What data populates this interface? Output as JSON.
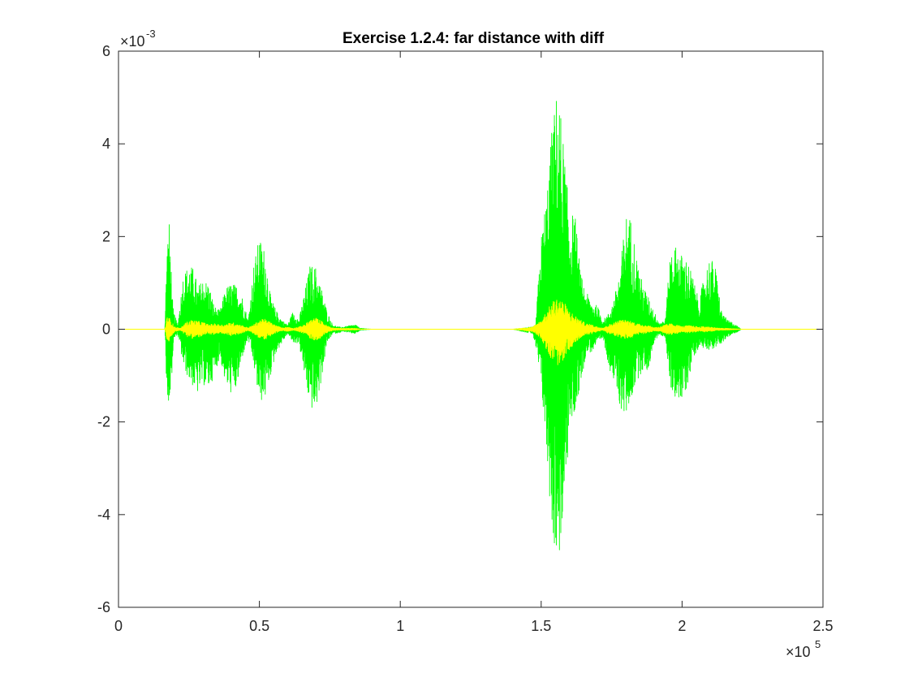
{
  "chart_data": {
    "type": "line",
    "title": "Exercise 1.2.4: far distance with diff",
    "xlabel": "",
    "ylabel": "",
    "x_exponent": {
      "prefix": "×10",
      "power": "5"
    },
    "y_exponent": {
      "prefix": "×10",
      "power": "-3"
    },
    "xlim": [
      0,
      2.5
    ],
    "ylim": [
      -6,
      6
    ],
    "x_ticks": [
      0,
      0.5,
      1,
      1.5,
      2,
      2.5
    ],
    "x_tick_labels": [
      "0",
      "0.5",
      "1",
      "1.5",
      "2",
      "2.5"
    ],
    "y_ticks": [
      -6,
      -4,
      -2,
      0,
      2,
      4,
      6
    ],
    "y_tick_labels": [
      "-6",
      "-4",
      "-2",
      "0",
      "2",
      "4",
      "6"
    ],
    "grid": false,
    "legend": "none",
    "series": [
      {
        "color": "#00ff00",
        "style": "audio waveform (signal)",
        "envelope_x": [
          0,
          0.165,
          0.17,
          0.175,
          0.18,
          0.185,
          0.19,
          0.195,
          0.2,
          0.21,
          0.23,
          0.25,
          0.27,
          0.28,
          0.3,
          0.32,
          0.34,
          0.36,
          0.38,
          0.4,
          0.42,
          0.44,
          0.46,
          0.48,
          0.5,
          0.52,
          0.54,
          0.56,
          0.58,
          0.6,
          0.62,
          0.64,
          0.66,
          0.68,
          0.7,
          0.72,
          0.74,
          0.76,
          0.78,
          0.8,
          0.82,
          0.84,
          0.86,
          0.9,
          1.0,
          1.2,
          1.4,
          1.47,
          1.48,
          1.5,
          1.52,
          1.54,
          1.56,
          1.58,
          1.6,
          1.62,
          1.64,
          1.66,
          1.68,
          1.7,
          1.72,
          1.74,
          1.76,
          1.78,
          1.8,
          1.82,
          1.84,
          1.86,
          1.88,
          1.9,
          1.92,
          1.94,
          1.96,
          1.98,
          2.0,
          2.02,
          2.04,
          2.06,
          2.08,
          2.1,
          2.12,
          2.14,
          2.16,
          2.18,
          2.2,
          2.21,
          2.5
        ],
        "envelope_upper": [
          0,
          0,
          1.5,
          2.1,
          2.3,
          1.8,
          0.8,
          0.4,
          0.3,
          0.1,
          1.2,
          1.4,
          1.3,
          0.9,
          1.1,
          1.0,
          0.5,
          0.4,
          0.9,
          1.0,
          0.95,
          0.7,
          0.2,
          1.4,
          2.0,
          1.7,
          0.7,
          0.4,
          0.2,
          0.1,
          0.4,
          0.2,
          0.8,
          1.4,
          1.35,
          0.9,
          0.4,
          0.1,
          0.05,
          0.05,
          0.08,
          0.1,
          0.02,
          0,
          0,
          0,
          0,
          0.05,
          0.1,
          2.0,
          3.0,
          4.5,
          5.3,
          4.0,
          2.5,
          2.5,
          1.2,
          0.8,
          0.6,
          0.5,
          0.2,
          0.35,
          0.7,
          1.3,
          2.5,
          2.4,
          1.5,
          1.0,
          0.7,
          0.4,
          0.15,
          0.2,
          1.8,
          1.8,
          1.6,
          1.5,
          1.1,
          0.6,
          1.2,
          1.6,
          1.3,
          0.4,
          0.2,
          0.15,
          0.05,
          0,
          0
        ],
        "envelope_lower": [
          0,
          0,
          -1.5,
          -1.4,
          -1.8,
          -1.5,
          -0.9,
          -0.3,
          -0.2,
          -0.1,
          -0.8,
          -1.1,
          -1.3,
          -1.4,
          -1.2,
          -1.3,
          -1.0,
          -0.6,
          -1.2,
          -1.4,
          -1.3,
          -0.6,
          -0.2,
          -0.8,
          -1.6,
          -1.5,
          -1.0,
          -0.5,
          -0.3,
          -0.1,
          -0.3,
          -0.3,
          -1.0,
          -1.7,
          -1.8,
          -1.1,
          -0.3,
          -0.1,
          -0.08,
          -0.05,
          -0.08,
          -0.1,
          -0.02,
          0,
          0,
          0,
          0,
          -0.1,
          -0.4,
          -1.2,
          -2.8,
          -4.5,
          -5.1,
          -4.2,
          -2.2,
          -1.8,
          -1.2,
          -0.5,
          -0.5,
          -0.3,
          -0.2,
          -0.8,
          -1.2,
          -1.7,
          -1.9,
          -1.5,
          -1.1,
          -0.9,
          -0.9,
          -0.3,
          -0.1,
          -0.2,
          -1.3,
          -1.5,
          -1.6,
          -1.2,
          -0.6,
          -0.4,
          -0.4,
          -0.45,
          -0.4,
          -0.3,
          -0.2,
          -0.1,
          -0.05,
          0,
          0
        ]
      },
      {
        "color": "#ffff00",
        "style": "audio waveform (diff of signal)",
        "envelope_x": [
          0,
          0.165,
          0.17,
          0.175,
          0.18,
          0.19,
          0.2,
          0.22,
          0.24,
          0.26,
          0.28,
          0.3,
          0.32,
          0.34,
          0.36,
          0.38,
          0.4,
          0.42,
          0.44,
          0.46,
          0.48,
          0.5,
          0.52,
          0.54,
          0.56,
          0.58,
          0.6,
          0.62,
          0.64,
          0.66,
          0.68,
          0.7,
          0.72,
          0.74,
          0.76,
          0.78,
          0.8,
          0.84,
          0.86,
          0.9,
          1.0,
          1.2,
          1.4,
          1.47,
          1.48,
          1.5,
          1.52,
          1.54,
          1.56,
          1.58,
          1.6,
          1.62,
          1.64,
          1.66,
          1.68,
          1.7,
          1.72,
          1.74,
          1.76,
          1.78,
          1.8,
          1.82,
          1.84,
          1.86,
          1.88,
          1.9,
          1.92,
          1.94,
          1.96,
          1.98,
          2.0,
          2.02,
          2.04,
          2.06,
          2.08,
          2.1,
          2.12,
          2.14,
          2.16,
          2.18,
          2.2,
          2.21,
          2.5
        ],
        "envelope_upper": [
          0,
          0,
          0.2,
          0.3,
          0.25,
          0.15,
          0.05,
          0.02,
          0.15,
          0.2,
          0.18,
          0.15,
          0.1,
          0.12,
          0.1,
          0.1,
          0.15,
          0.12,
          0.08,
          0.03,
          0.1,
          0.2,
          0.22,
          0.15,
          0.08,
          0.03,
          0.05,
          0.02,
          0.05,
          0.1,
          0.2,
          0.25,
          0.18,
          0.08,
          0.03,
          0.02,
          0.02,
          0.02,
          0,
          0,
          0,
          0,
          0,
          0.05,
          0.1,
          0.2,
          0.4,
          0.6,
          0.7,
          0.6,
          0.4,
          0.3,
          0.2,
          0.12,
          0.1,
          0.05,
          0.03,
          0.1,
          0.15,
          0.2,
          0.2,
          0.18,
          0.12,
          0.1,
          0.08,
          0.04,
          0.05,
          0.1,
          0.12,
          0.1,
          0.06,
          0.08,
          0.07,
          0.05,
          0.06,
          0.05,
          0.03,
          0.02,
          0.02,
          0.01,
          0.005,
          0,
          0
        ],
        "envelope_lower": [
          0,
          0,
          -0.2,
          -0.3,
          -0.25,
          -0.15,
          -0.05,
          -0.02,
          -0.15,
          -0.2,
          -0.18,
          -0.15,
          -0.1,
          -0.12,
          -0.1,
          -0.1,
          -0.15,
          -0.12,
          -0.08,
          -0.03,
          -0.1,
          -0.2,
          -0.22,
          -0.15,
          -0.08,
          -0.03,
          -0.05,
          -0.02,
          -0.05,
          -0.1,
          -0.2,
          -0.25,
          -0.18,
          -0.08,
          -0.03,
          -0.02,
          -0.02,
          -0.02,
          0,
          0,
          0,
          0,
          0,
          -0.05,
          -0.1,
          -0.2,
          -0.45,
          -0.7,
          -0.8,
          -0.65,
          -0.45,
          -0.3,
          -0.2,
          -0.12,
          -0.1,
          -0.05,
          -0.03,
          -0.1,
          -0.15,
          -0.2,
          -0.2,
          -0.18,
          -0.12,
          -0.1,
          -0.08,
          -0.04,
          -0.05,
          -0.1,
          -0.12,
          -0.1,
          -0.06,
          -0.08,
          -0.07,
          -0.05,
          -0.06,
          -0.05,
          -0.03,
          -0.02,
          -0.02,
          -0.01,
          -0.005,
          0,
          0
        ]
      }
    ]
  }
}
